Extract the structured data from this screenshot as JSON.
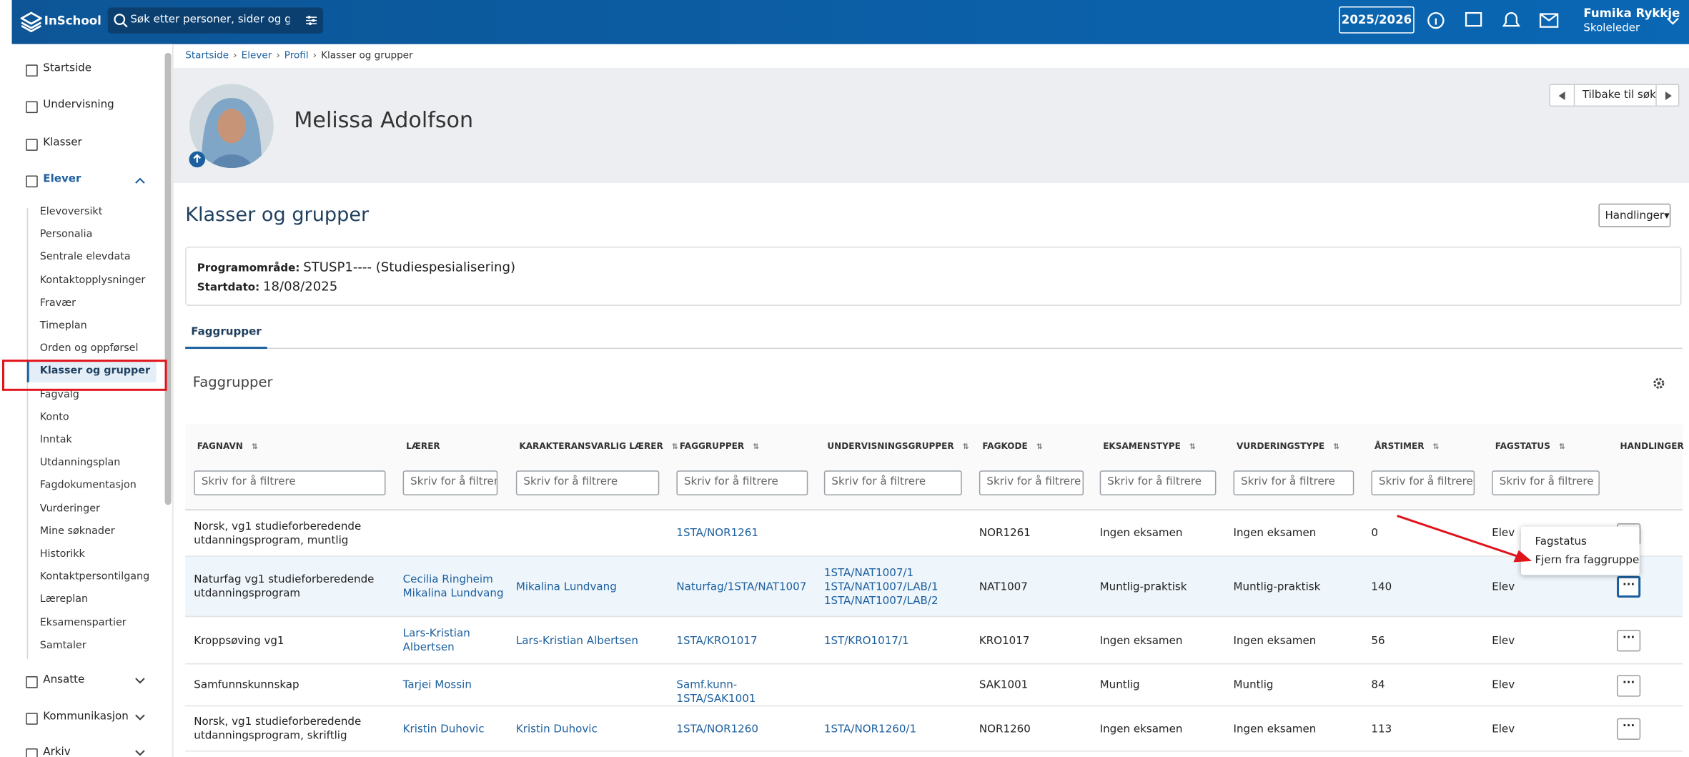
{
  "topbar": {
    "logo": "InSchool",
    "search_placeholder": "Søk etter personer, sider og grupper",
    "year": "2025/2026",
    "user_name": "Fumika Rykkje",
    "user_role": "Skoleleder"
  },
  "sidebar": {
    "main_top": [
      "Startside",
      "Undervisning",
      "Klasser",
      "Elever"
    ],
    "elever_items": [
      "Elevoversikt",
      "Personalia",
      "Sentrale elevdata",
      "Kontaktopplysninger",
      "Fravær",
      "Timeplan",
      "Orden og oppførsel",
      "Klasser og grupper",
      "Fagvalg",
      "Konto",
      "Inntak",
      "Utdanningsplan",
      "Fagdokumentasjon",
      "Vurderinger",
      "Mine søknader",
      "Historikk",
      "Kontaktpersontilgang",
      "Læreplan",
      "Eksamenspartier",
      "Samtaler"
    ],
    "main_bottom": [
      "Ansatte",
      "Kommunikasjon",
      "Arkiv"
    ]
  },
  "breadcrumb": [
    "Startside",
    "Elever",
    "Profil",
    "Klasser og grupper"
  ],
  "profile": {
    "name": "Melissa Adolfson",
    "back": "Tilbake til søk"
  },
  "page": {
    "title": "Klasser og grupper",
    "actions": "Handlinger",
    "program_label": "Programområde:",
    "program_value": "STUSP1---- (Studiespesialisering)",
    "start_label": "Startdato:",
    "start_value": "18/08/2025",
    "tab": "Faggrupper",
    "section_title": "Faggrupper"
  },
  "table": {
    "columns": [
      "FAGNAVN",
      "LÆRER",
      "KARAKTERANSVARLIG LÆRER",
      "FAGGRUPPER",
      "UNDERVISNINGSGRUPPER",
      "FAGKODE",
      "EKSAMENSTYPE",
      "VURDERINGSTYPE",
      "ÅRSTIMER",
      "FAGSTATUS",
      "HANDLINGER"
    ],
    "filter_placeholder": "Skriv for å filtrere",
    "rows": [
      [
        "Norsk, vg1 studieforberedende utdanningsprogram, muntlig",
        null,
        null,
        "1STA/NOR1261",
        null,
        "NOR1261",
        "Ingen eksamen",
        "Ingen eksamen",
        0,
        "Elev"
      ],
      [
        "Naturfag vg1 studieforberedende utdanningsprogram",
        [
          "Cecilia Ringheim",
          "Mikalina Lundvang"
        ],
        "Mikalina Lundvang",
        "Naturfag/1STA/NAT1007",
        [
          "1STA/NAT1007/1",
          "1STA/NAT1007/LAB/1",
          "1STA/NAT1007/LAB/2"
        ],
        "NAT1007",
        "Muntlig-praktisk",
        "Muntlig-praktisk",
        140,
        "Elev"
      ],
      [
        "Kroppsøving vg1",
        "Lars-Kristian Albertsen",
        "Lars-Kristian Albertsen",
        "1STA/KRO1017",
        "1ST/KRO1017/1",
        "KRO1017",
        "Ingen eksamen",
        "Ingen eksamen",
        56,
        "Elev"
      ],
      [
        "Samfunnskunnskap",
        "Tarjei Mossin",
        null,
        "Samf.kunn-1STA/SAK1001",
        null,
        "SAK1001",
        "Muntlig",
        "Muntlig",
        84,
        "Elev"
      ],
      [
        "Norsk, vg1 studieforberedende utdanningsprogram, skriftlig",
        "Kristin Duhovic",
        "Kristin Duhovic",
        "1STA/NOR1260",
        "1STA/NOR1260/1",
        "NOR1260",
        "Ingen eksamen",
        "Ingen eksamen",
        113,
        "Elev"
      ]
    ]
  },
  "menu": [
    "Fagstatus",
    "Fjern fra faggruppe"
  ]
}
